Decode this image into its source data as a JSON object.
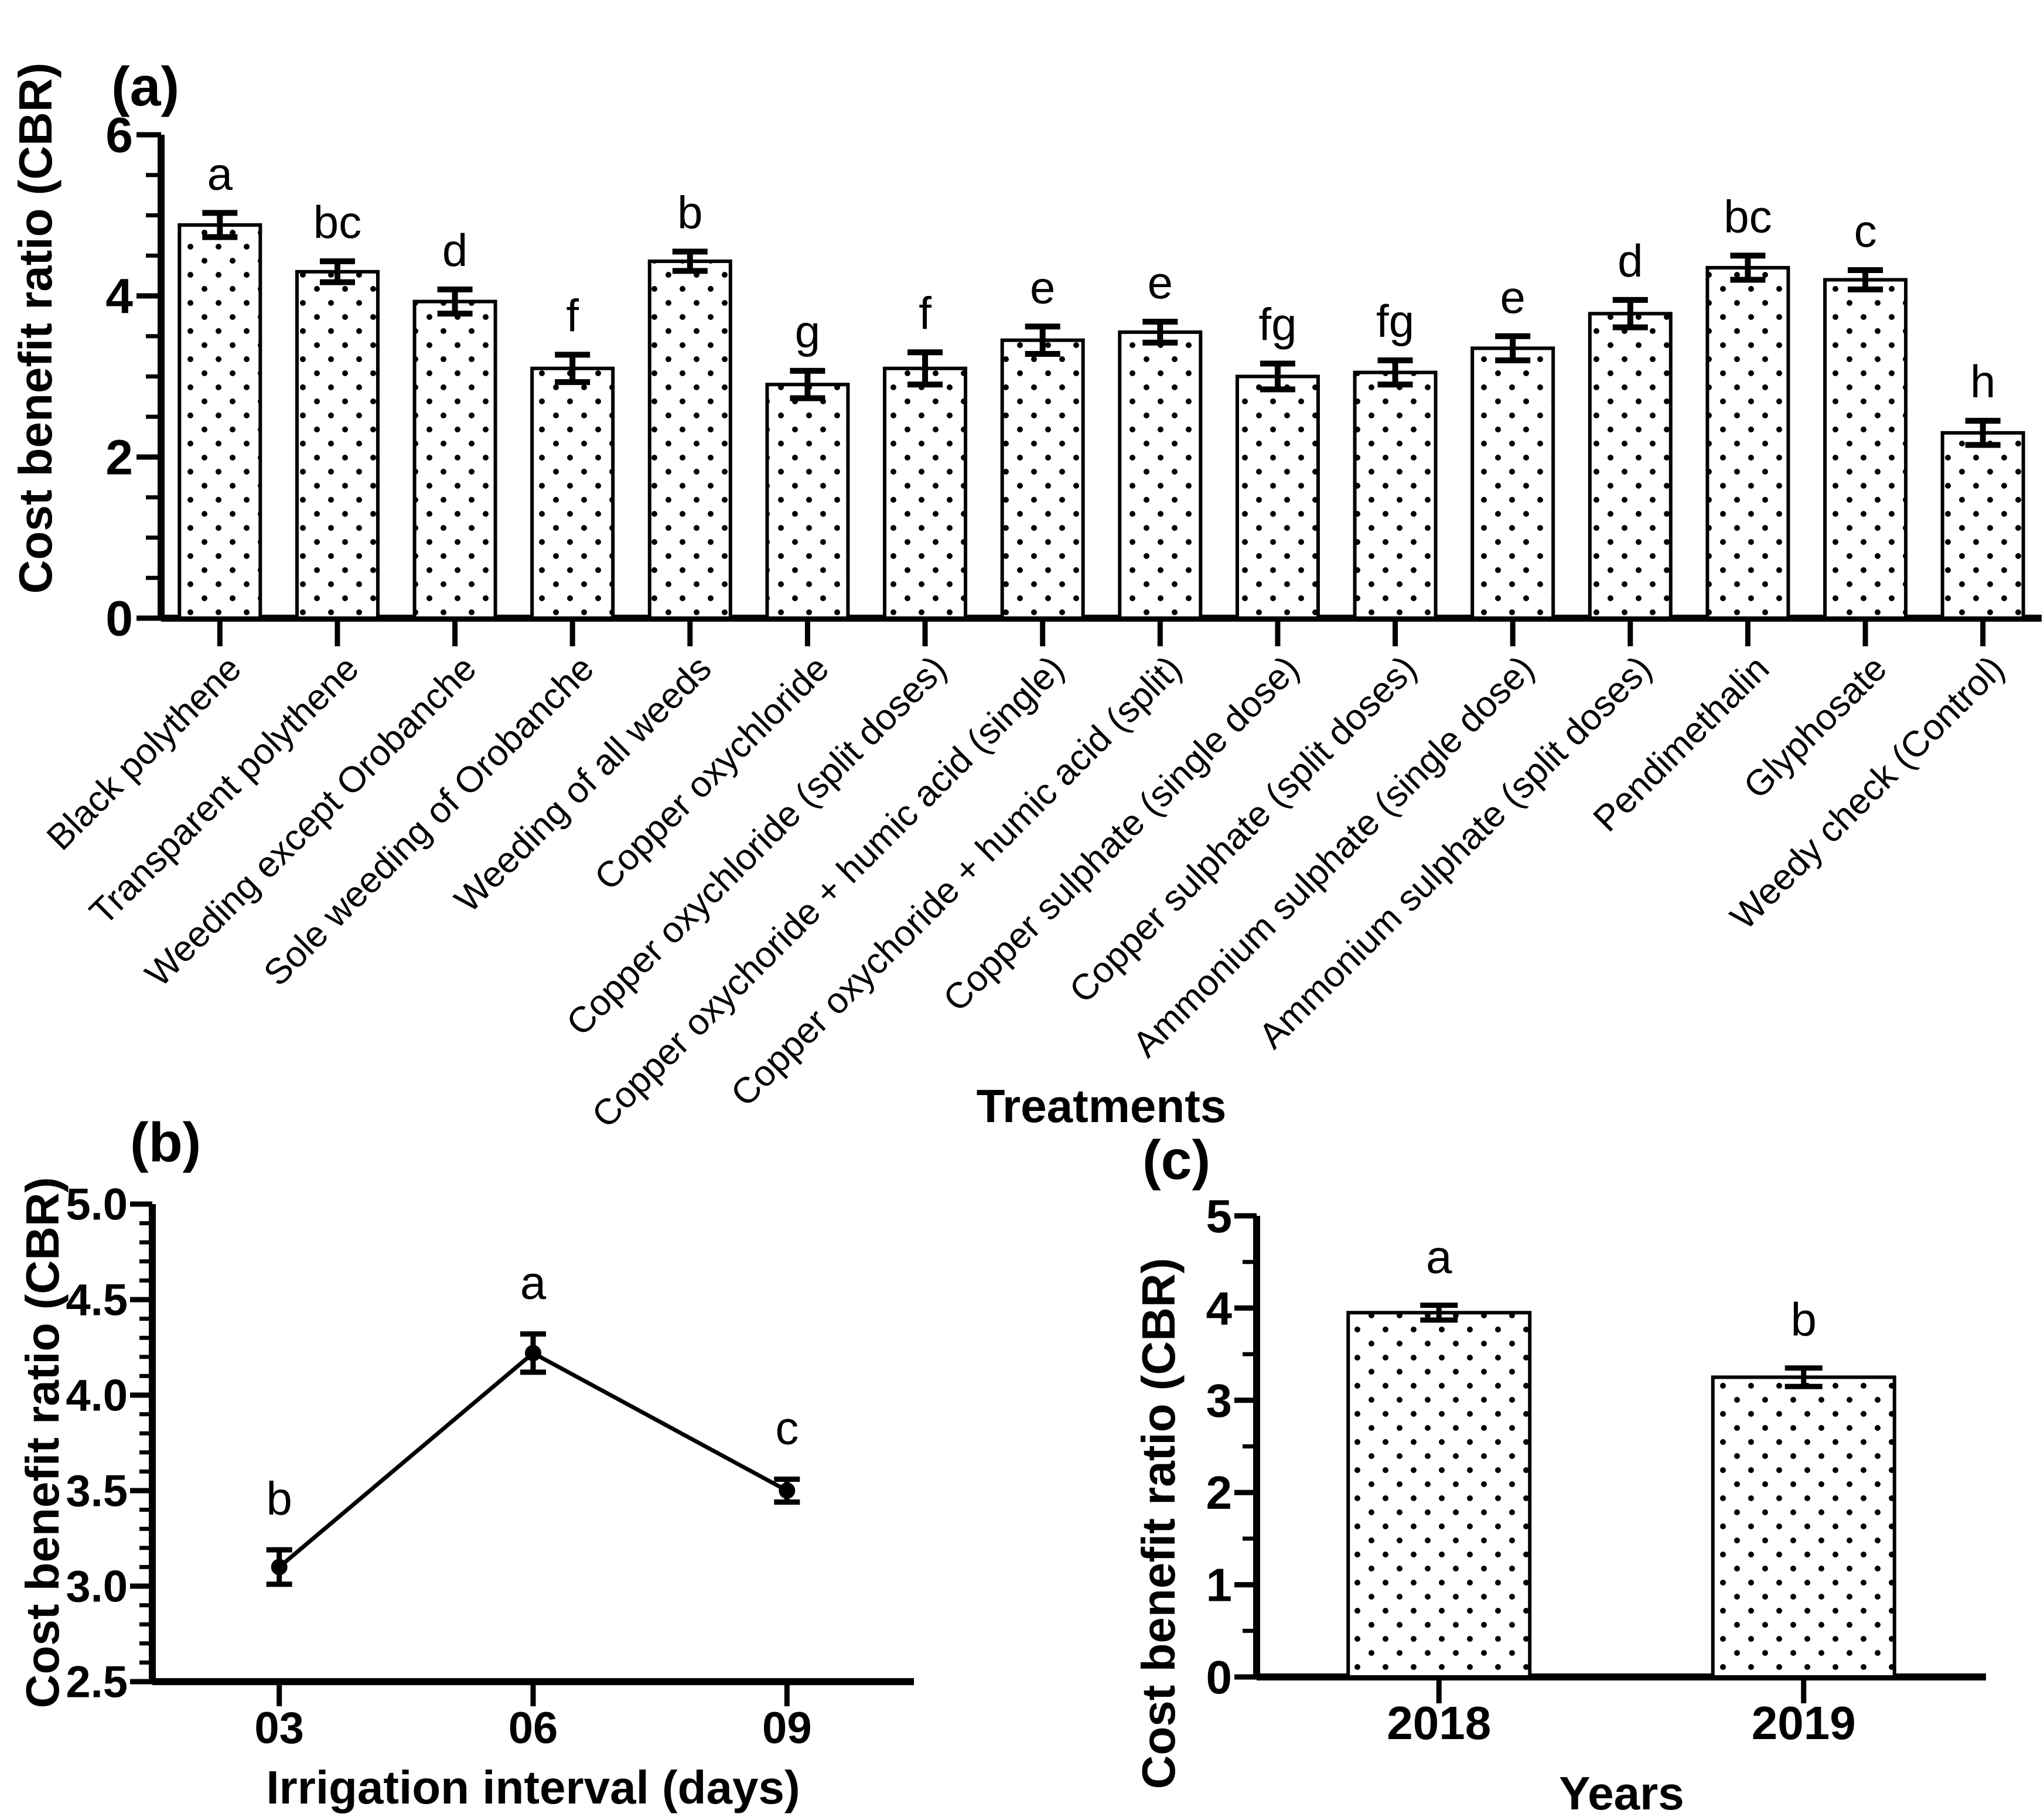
{
  "colors": {
    "ink": "#000000",
    "background": "#ffffff",
    "bar_fill": "white-with-black-dots"
  },
  "chart_data": [
    {
      "id": "a",
      "type": "bar",
      "panel_label": "(a)",
      "ylabel": "Cost benefit ratio (CBR)",
      "xlabel": "Treatments",
      "ylim": [
        0,
        6
      ],
      "yticks": [
        0,
        2,
        4,
        6
      ],
      "ytick_labels": [
        "0",
        "2",
        "4",
        "6"
      ],
      "yminor_step": 0.5,
      "grid": false,
      "legend": "none",
      "categories": [
        "Black polythene",
        "Transparent polythene",
        "Weeding except Orobanche",
        "Sole weeding of Orobanche",
        "Weeding of all weeds",
        "Copper oxychloride",
        "Copper oxychloride (split doses)",
        "Copper oxychoride + humic acid (single)",
        "Copper oxychoride + humic acid (split)",
        "Copper sulphate (single dose)",
        "Copper sulphate (split doses)",
        "Ammonium sulphate (single dose)",
        "Ammonium sulphate (split doses)",
        "Pendimethalin",
        "Glyphosate",
        "Weedy check (Control)"
      ],
      "values": [
        4.88,
        4.3,
        3.93,
        3.1,
        4.43,
        2.9,
        3.1,
        3.45,
        3.55,
        3.0,
        3.05,
        3.35,
        3.78,
        4.35,
        4.2,
        2.3
      ],
      "errors": [
        0.15,
        0.13,
        0.15,
        0.17,
        0.12,
        0.17,
        0.2,
        0.17,
        0.13,
        0.16,
        0.15,
        0.15,
        0.17,
        0.15,
        0.12,
        0.15
      ],
      "sig_letters": [
        "a",
        "bc",
        "d",
        "f",
        "b",
        "g",
        "f",
        "e",
        "e",
        "fg",
        "fg",
        "e",
        "d",
        "bc",
        "c",
        "h"
      ]
    },
    {
      "id": "b",
      "type": "line",
      "panel_label": "(b)",
      "ylabel": "Cost benefit ratio (CBR)",
      "xlabel": "Irrigation interval (days)",
      "ylim": [
        2.5,
        5.0
      ],
      "yticks": [
        2.5,
        3.0,
        3.5,
        4.0,
        4.5,
        5.0
      ],
      "ytick_labels": [
        "2.5",
        "3.0",
        "3.5",
        "4.0",
        "4.5",
        "5.0"
      ],
      "yminor_step": 0.1,
      "grid": false,
      "legend": "none",
      "categories": [
        "03",
        "06",
        "09"
      ],
      "values": [
        3.1,
        4.22,
        3.5
      ],
      "errors": [
        0.09,
        0.1,
        0.06
      ],
      "sig_letters": [
        "b",
        "a",
        "c"
      ]
    },
    {
      "id": "c",
      "type": "bar",
      "panel_label": "(c)",
      "ylabel": "Cost benefit ratio (CBR)",
      "xlabel": "Years",
      "ylim": [
        0,
        5
      ],
      "yticks": [
        0,
        1,
        2,
        3,
        4,
        5
      ],
      "ytick_labels": [
        "0",
        "1",
        "2",
        "3",
        "4",
        "5"
      ],
      "yminor_step": 0.5,
      "grid": false,
      "legend": "none",
      "categories": [
        "2018",
        "2019"
      ],
      "values": [
        3.95,
        3.25
      ],
      "errors": [
        0.08,
        0.1
      ],
      "sig_letters": [
        "a",
        "b"
      ]
    }
  ]
}
